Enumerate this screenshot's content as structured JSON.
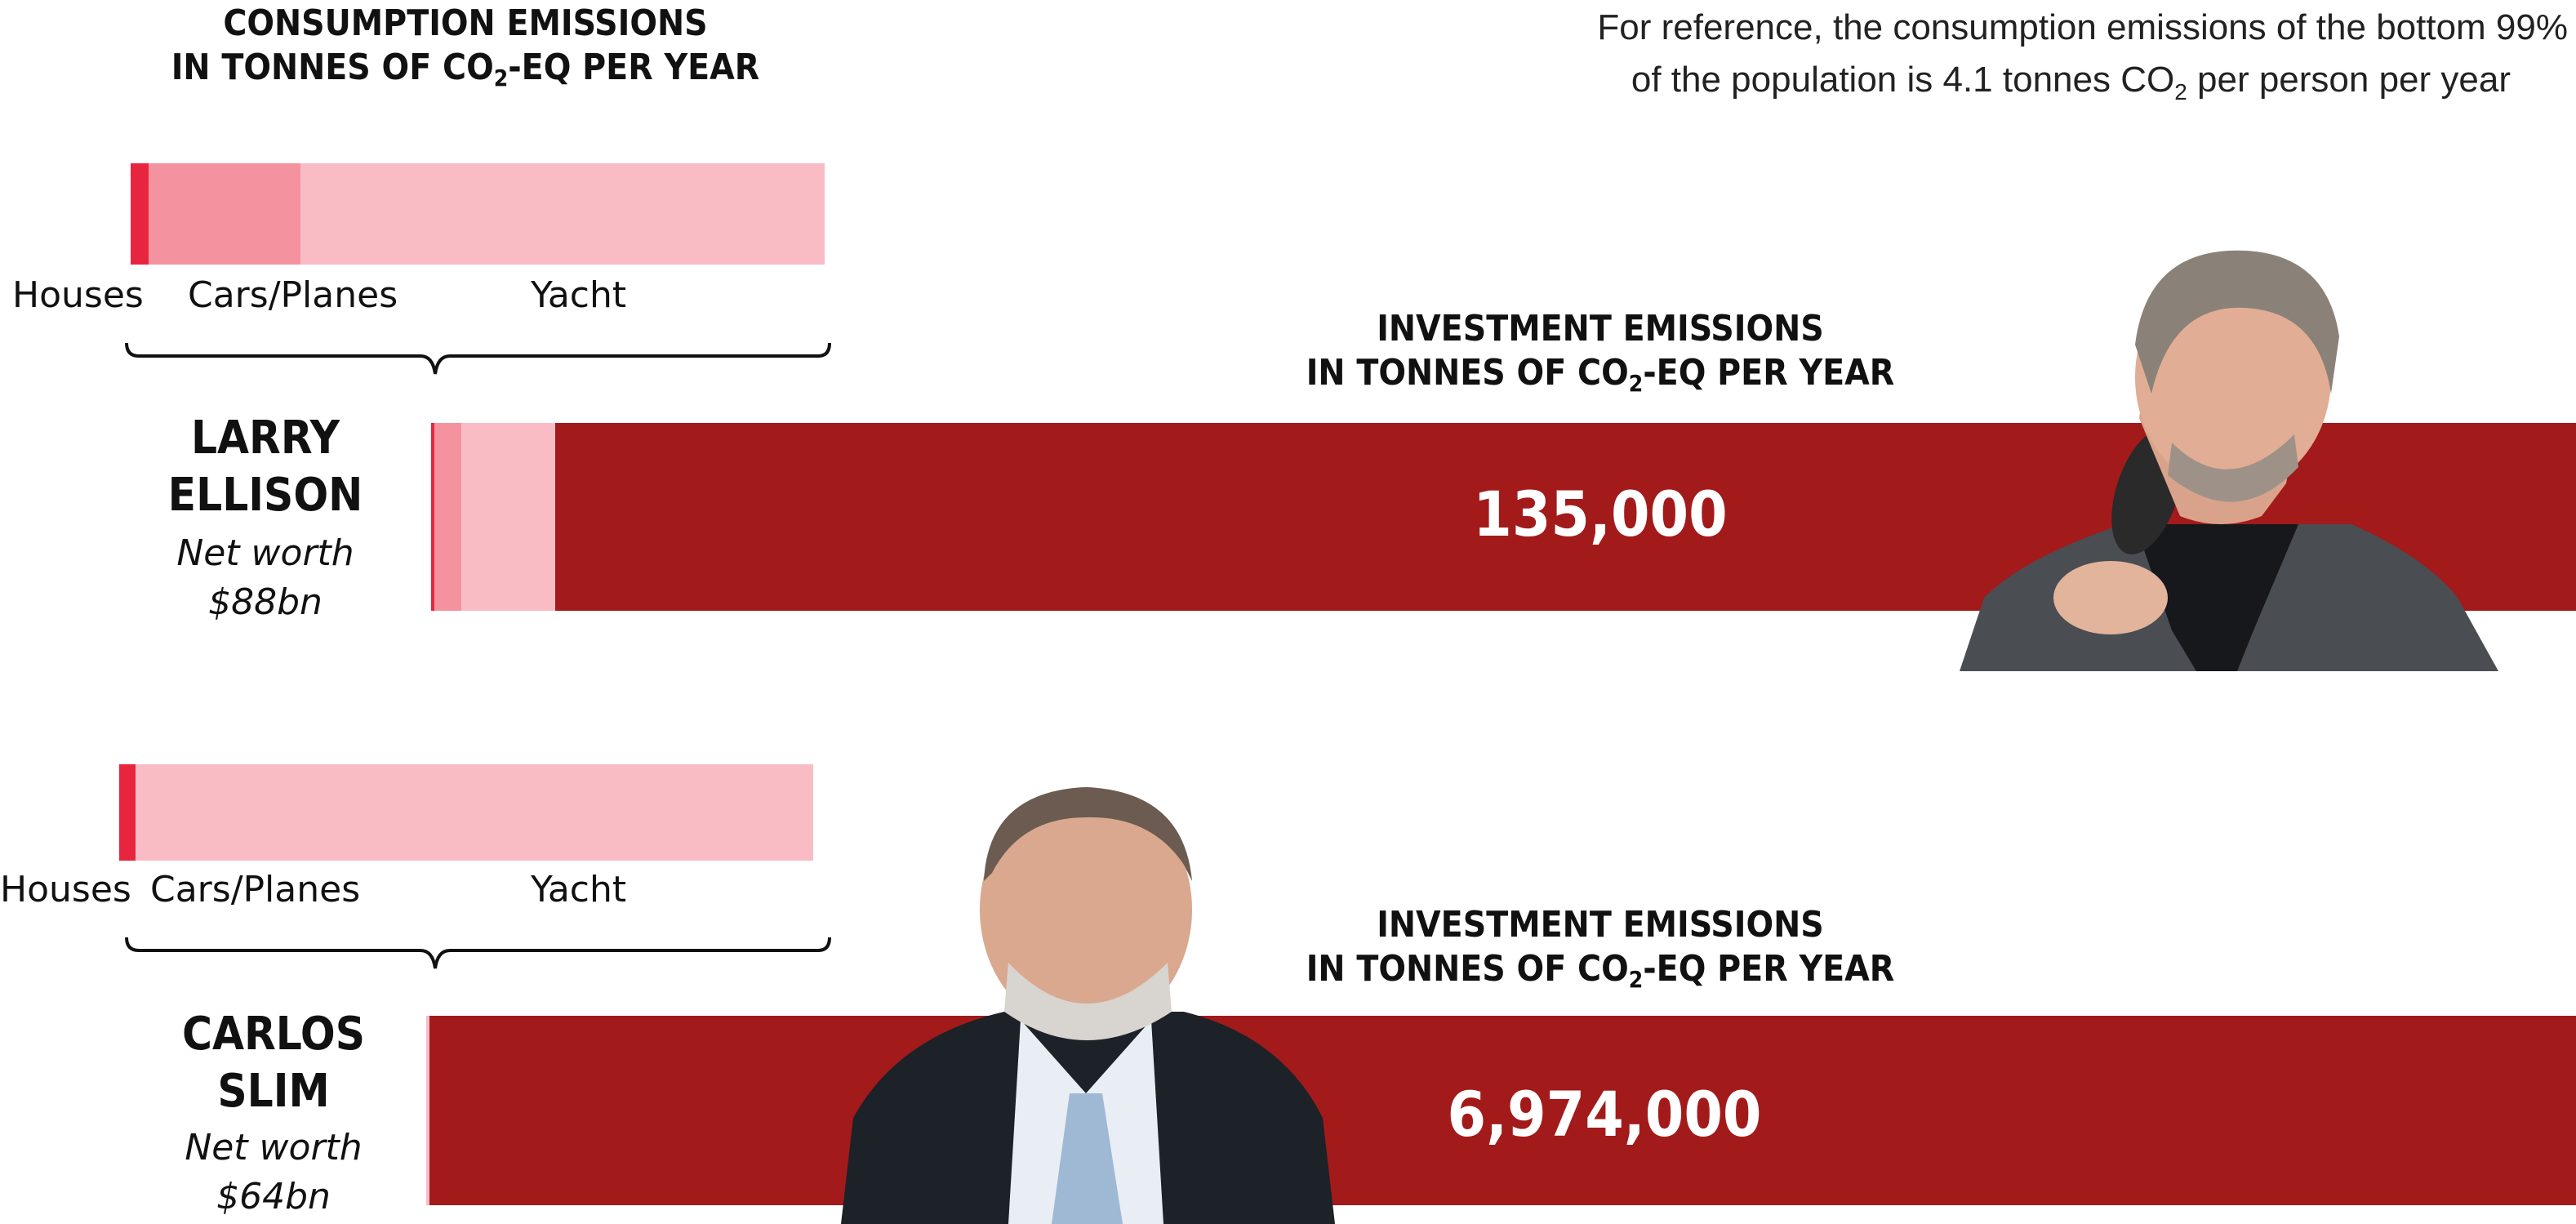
{
  "consumption_heading_line1": "CONSUMPTION EMISSIONS",
  "consumption_heading_line2_pre": "IN TONNES OF CO",
  "consumption_heading_sub": "2",
  "consumption_heading_line2_post": "-EQ PER YEAR",
  "reference_line1": "For reference, the consumption emissions of the bottom 99%",
  "reference_line2_pre": "of the population is 4.1 tonnes CO",
  "reference_sub": "2",
  "reference_line2_post": " per person per year",
  "investment_heading_line1": "INVESTMENT EMISSIONS",
  "investment_heading_line2_pre": "IN TONNES OF CO",
  "investment_heading_sub": "2",
  "investment_heading_line2_post": "-EQ PER YEAR",
  "colors": {
    "houses": "#e8253f",
    "cars_planes": "#f4939f",
    "yacht": "#f9bcc5",
    "investment": "#a31a1b",
    "brace": "#111111"
  },
  "chart_data": {
    "type": "bar",
    "people": [
      {
        "name_line1": "LARRY",
        "name_line2": "ELLISON",
        "net_worth_label": "Net worth",
        "net_worth": "$88bn",
        "consumption_segments": [
          {
            "label": "Houses",
            "share": 0.026
          },
          {
            "label": "Cars/Planes",
            "share": 0.219
          },
          {
            "label": "Yacht",
            "share": 0.755
          }
        ],
        "investment_emissions": 135000,
        "investment_label": "135,000",
        "photo_icon": "person-photo-icon"
      },
      {
        "name_line1": "CARLOS",
        "name_line2": "SLIM",
        "net_worth_label": "Net worth",
        "net_worth": "$64bn",
        "consumption_segments": [
          {
            "label": "Houses",
            "share": 0.024
          },
          {
            "label": "Cars/Planes",
            "share": 0.0
          },
          {
            "label": "Yacht",
            "share": 0.976
          }
        ],
        "investment_emissions": 6974000,
        "investment_label": "6,974,000",
        "photo_icon": "person-photo-icon"
      }
    ]
  }
}
